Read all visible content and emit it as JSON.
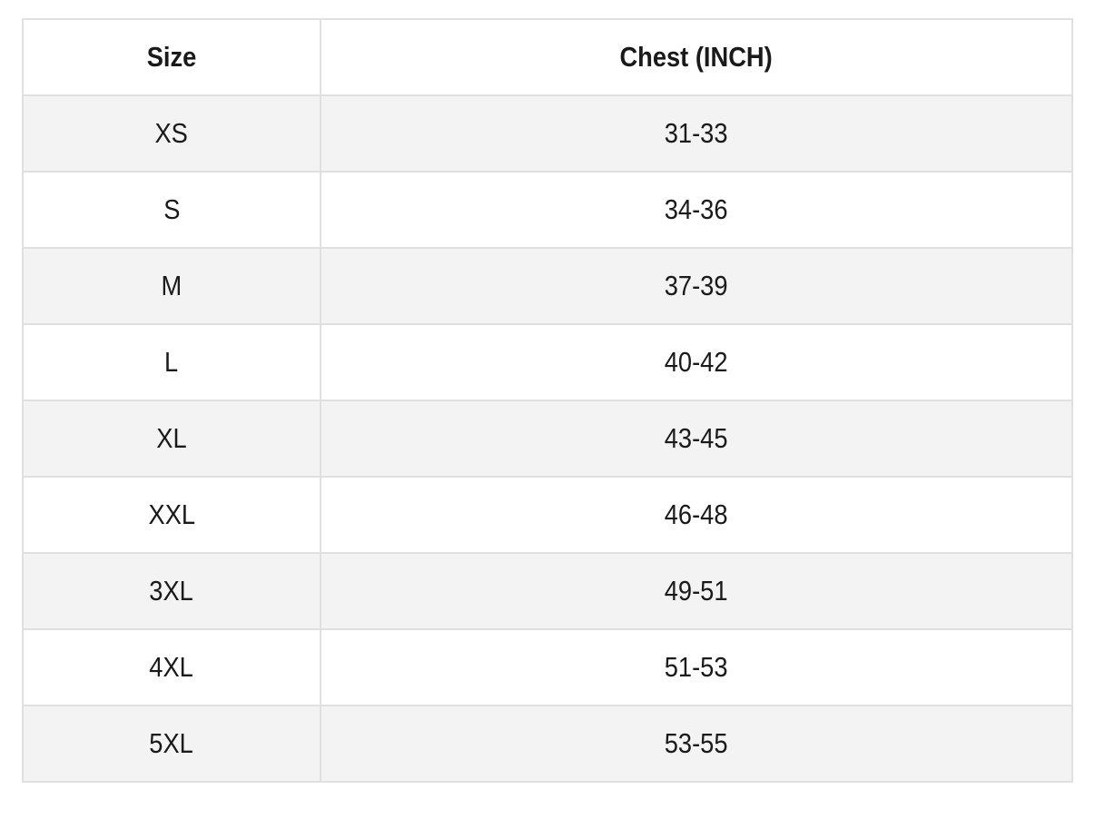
{
  "table": {
    "headers": [
      "Size",
      "Chest (INCH)"
    ],
    "rows": [
      [
        "XS",
        "31-33"
      ],
      [
        "S",
        "34-36"
      ],
      [
        "M",
        "37-39"
      ],
      [
        "L",
        "40-42"
      ],
      [
        "XL",
        "43-45"
      ],
      [
        "XXL",
        "46-48"
      ],
      [
        "3XL",
        "49-51"
      ],
      [
        "4XL",
        "51-53"
      ],
      [
        "5XL",
        "53-55"
      ]
    ],
    "stripe_color": "#f3f3f3",
    "border_color": "#e0e0e0"
  }
}
